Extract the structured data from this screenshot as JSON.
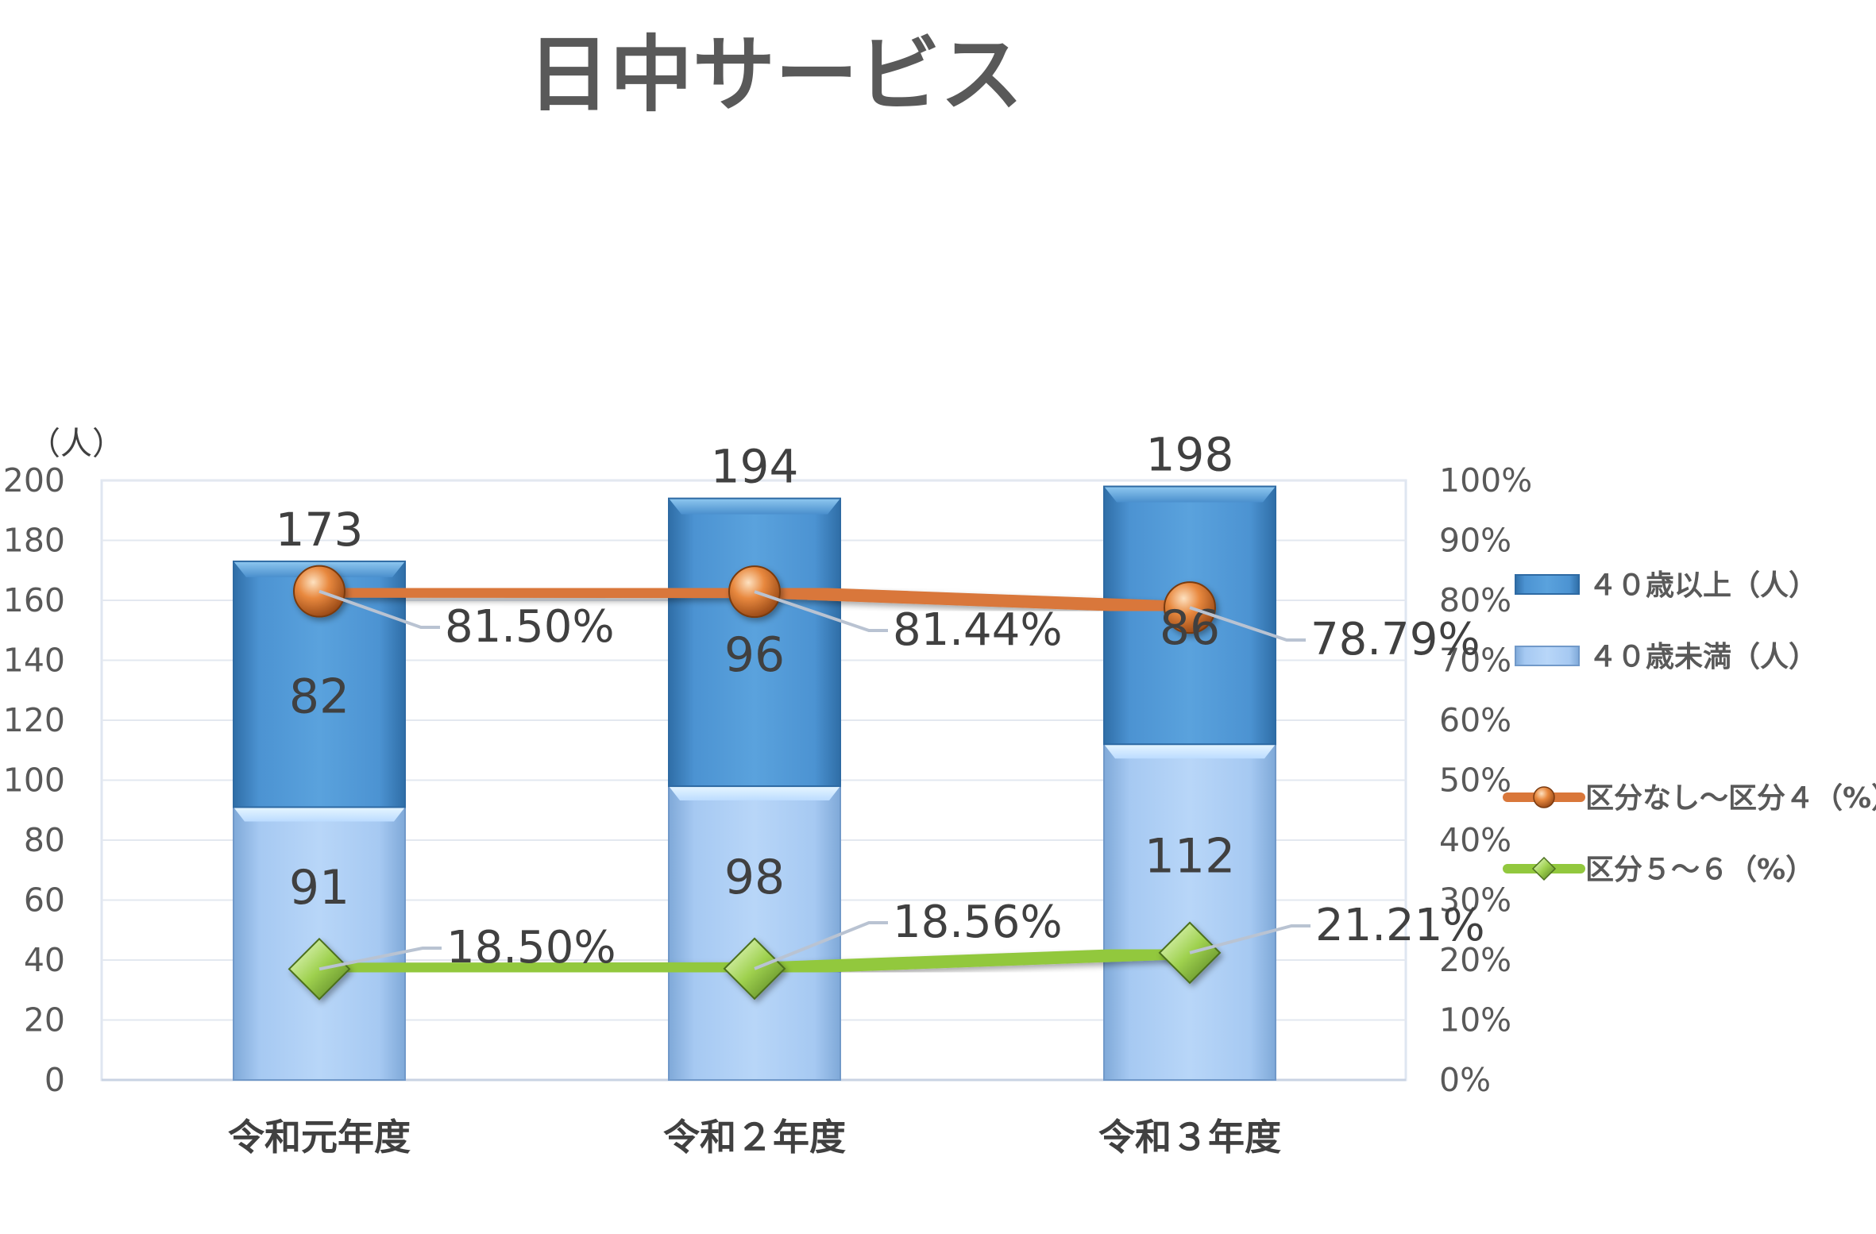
{
  "chart_data": {
    "type": "bar",
    "title": "日中サービス",
    "categories": [
      "令和元年度",
      "令和２年度",
      "令和３年度"
    ],
    "y_left": {
      "unit_label": "（人）",
      "ylim": [
        0,
        200
      ],
      "ticks": [
        "0",
        "20",
        "40",
        "60",
        "80",
        "100",
        "120",
        "140",
        "160",
        "180",
        "200"
      ]
    },
    "y_right": {
      "ylim": [
        0,
        100
      ],
      "ticks": [
        "0%",
        "10%",
        "20%",
        "30%",
        "40%",
        "50%",
        "60%",
        "70%",
        "80%",
        "90%",
        "100%"
      ]
    },
    "totals": [
      173,
      194,
      198
    ],
    "series": [
      {
        "name": "４０歳未満（人）",
        "kind": "bar",
        "axis": "left",
        "values": [
          91,
          98,
          112
        ],
        "color": "#a9cbf5"
      },
      {
        "name": "４０歳以上（人）",
        "kind": "bar",
        "axis": "left",
        "values": [
          82,
          96,
          86
        ],
        "color": "#4a8fcd"
      },
      {
        "name": "区分なし～区分４（%）",
        "kind": "line",
        "axis": "right",
        "values": [
          81.5,
          81.44,
          78.79
        ],
        "labels": [
          "81.50%",
          "81.44%",
          "78.79%"
        ],
        "color": "#d9773a"
      },
      {
        "name": "区分５～６（%）",
        "kind": "line",
        "axis": "right",
        "values": [
          18.5,
          18.56,
          21.21
        ],
        "labels": [
          "18.50%",
          "18.56%",
          "21.21%"
        ],
        "color": "#92c83e"
      }
    ],
    "legend": {
      "placement": "right",
      "order": [
        "４０歳以上（人）",
        "４０歳未満（人）",
        "区分なし～区分４（%）",
        "区分５～６（%）"
      ]
    },
    "grid": true
  }
}
